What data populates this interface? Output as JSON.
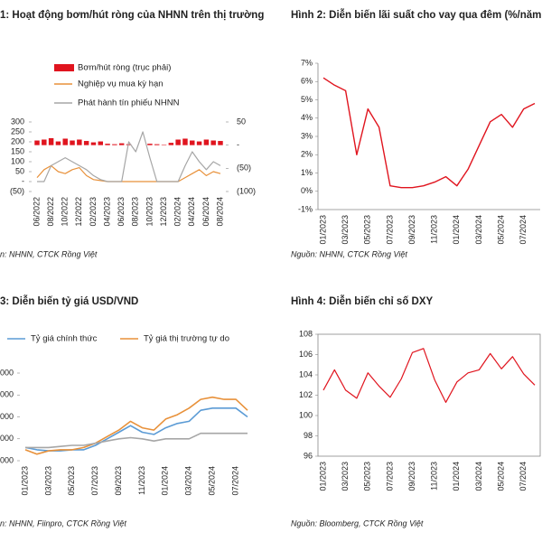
{
  "chart_data": [
    {
      "type": "combo",
      "title": "1: Hoạt động bơm/hút ròng của NHNN trên thị trường",
      "source": "n: NHNN, CTCK Rồng Việt",
      "categories": [
        "06/2022",
        null,
        "08/2022",
        null,
        "10/2022",
        null,
        "12/2022",
        null,
        "02/2023",
        null,
        "04/2023",
        null,
        "06/2023",
        null,
        "08/2023",
        null,
        "10/2023",
        null,
        "12/2023",
        null,
        "02/2024",
        null,
        "04/2024",
        null,
        "06/2024",
        null,
        "08/2024"
      ],
      "series": [
        {
          "name": "Bơm/hút ròng (trục phải)",
          "type": "bar",
          "axis": "y2",
          "color": "#e0141e",
          "values": [
            10,
            12,
            15,
            8,
            14,
            10,
            12,
            9,
            6,
            8,
            3,
            2,
            4,
            2,
            0,
            0,
            3,
            2,
            1,
            5,
            12,
            14,
            10,
            8,
            12,
            10,
            9
          ]
        },
        {
          "name": "Nghiệp vụ mua kỳ hạn",
          "type": "line",
          "color": "#e8913a",
          "values": [
            20,
            60,
            80,
            50,
            40,
            60,
            70,
            30,
            10,
            5,
            0,
            0,
            0,
            0,
            0,
            0,
            0,
            0,
            0,
            0,
            0,
            20,
            40,
            60,
            30,
            50,
            40
          ]
        },
        {
          "name": "Phát hành tín phiếu NHNN",
          "type": "line",
          "color": "#a6a6a6",
          "values": [
            0,
            0,
            80,
            100,
            120,
            100,
            80,
            60,
            30,
            10,
            0,
            0,
            0,
            200,
            150,
            250,
            120,
            0,
            0,
            0,
            0,
            80,
            150,
            100,
            60,
            100,
            80
          ]
        }
      ],
      "ylim": [
        -50,
        300
      ],
      "yticks": [
        300,
        250,
        200,
        150,
        100,
        50,
        {
          "value": 0,
          "label": "-"
        },
        {
          "value": -50,
          "label": "(50)"
        }
      ],
      "y2lim": [
        -100,
        50
      ],
      "y2ticks": [
        50,
        {
          "value": 0,
          "label": "-"
        },
        {
          "value": -50,
          "label": "(50)"
        },
        {
          "value": -100,
          "label": "(100)"
        }
      ]
    },
    {
      "type": "line",
      "title": "Hình 2: Diễn biến lãi suất cho vay qua đêm (%/năm",
      "source": "Nguồn: NHNN, CTCK Rồng Việt",
      "categories": [
        "01/2023",
        null,
        "03/2023",
        null,
        "05/2023",
        null,
        "07/2023",
        null,
        "09/2023",
        null,
        "11/2023",
        null,
        "01/2024",
        null,
        "03/2024",
        null,
        "05/2024",
        null,
        "07/2024",
        null
      ],
      "series": [
        {
          "color": "#e0141e",
          "values": [
            6.2,
            5.8,
            5.5,
            2.0,
            4.5,
            3.5,
            0.3,
            0.2,
            0.2,
            0.3,
            0.5,
            0.8,
            0.3,
            1.2,
            2.5,
            3.8,
            4.2,
            3.5,
            4.5,
            4.8
          ]
        }
      ],
      "ylim": [
        -1,
        7
      ],
      "yticks": [
        {
          "value": 7,
          "label": "7%"
        },
        {
          "value": 6,
          "label": "6%"
        },
        {
          "value": 5,
          "label": "5%"
        },
        {
          "value": 4,
          "label": "4%"
        },
        {
          "value": 3,
          "label": "3%"
        },
        {
          "value": 2,
          "label": "2%"
        },
        {
          "value": 1,
          "label": "1%"
        },
        {
          "value": 0,
          "label": "0%"
        },
        {
          "value": -1,
          "label": "-1%"
        }
      ]
    },
    {
      "type": "line",
      "title": "3: Diễn biến tỷ giá USD/VND",
      "source": "n: NHNN, Fiinpro, CTCK Rồng Việt",
      "categories": [
        "01/2023",
        null,
        "03/2023",
        null,
        "05/2023",
        null,
        "07/2023",
        null,
        "09/2023",
        null,
        "11/2023",
        null,
        "01/2024",
        null,
        "03/2024",
        null,
        "05/2024",
        null,
        "07/2024",
        null
      ],
      "series": [
        {
          "name": "Tỷ giá chính thức",
          "color": "#5b9bd5",
          "values": [
            23600,
            23500,
            23450,
            23450,
            23500,
            23500,
            23700,
            24000,
            24300,
            24600,
            24300,
            24200,
            24500,
            24700,
            24800,
            25300,
            25400,
            25400,
            25400,
            25000
          ]
        },
        {
          "name": "Tỷ giá thị trường tự do",
          "color": "#e8913a",
          "values": [
            23500,
            23300,
            23450,
            23500,
            23500,
            23600,
            23800,
            24100,
            24400,
            24800,
            24500,
            24400,
            24900,
            25100,
            25400,
            25800,
            25900,
            25800,
            25800,
            25300
          ]
        },
        {
          "color": "#a6a6a6",
          "values": [
            23600,
            23600,
            23600,
            23650,
            23700,
            23700,
            23800,
            23900,
            24000,
            24050,
            24000,
            23900,
            24000,
            24000,
            24000,
            24250,
            24250,
            24250,
            24250,
            24250
          ]
        }
      ],
      "ylim": [
        23000,
        27000
      ],
      "yticks": [
        {
          "value": 27000,
          "label": "000"
        },
        {
          "value": 26000,
          "label": "000"
        },
        {
          "value": 25000,
          "label": "000"
        },
        {
          "value": 24000,
          "label": "000"
        },
        {
          "value": 23000,
          "label": "000"
        }
      ]
    },
    {
      "type": "line",
      "title": "Hình 4: Diễn biến chỉ số DXY",
      "source": "Nguồn: Bloomberg,  CTCK Rồng Việt",
      "categories": [
        "01/2023",
        null,
        "03/2023",
        null,
        "05/2023",
        null,
        "07/2023",
        null,
        "09/2023",
        null,
        "11/2023",
        null,
        "01/2024",
        null,
        "03/2024",
        null,
        "05/2024",
        null,
        "07/2024",
        null
      ],
      "series": [
        {
          "color": "#e0141e",
          "values": [
            102.5,
            104.5,
            102.5,
            101.7,
            104.2,
            102.9,
            101.8,
            103.6,
            106.2,
            106.6,
            103.5,
            101.3,
            103.3,
            104.2,
            104.5,
            106.1,
            104.6,
            105.8,
            104.1,
            103.0
          ]
        }
      ],
      "ylim": [
        96,
        108
      ],
      "yticks": [
        108,
        106,
        104,
        102,
        100,
        98,
        96
      ]
    }
  ]
}
